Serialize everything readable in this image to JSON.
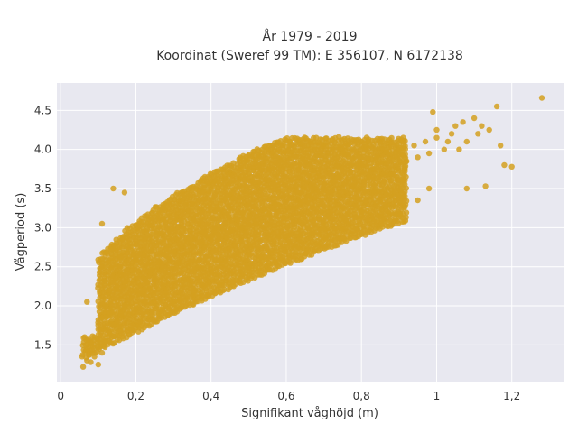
{
  "chart_data": {
    "type": "scatter",
    "title_line1": "År 1979 - 2019",
    "title_line2": "Koordinat (Sweref 99 TM): E 356107, N 6172138",
    "xlabel": "Signifikant våghöjd (m)",
    "ylabel": "Vågperiod (s)",
    "xlim": [
      -0.01,
      1.34
    ],
    "ylim": [
      1.02,
      4.85
    ],
    "x_ticks": [
      0,
      0.2,
      0.4,
      0.6,
      0.8,
      1,
      1.2
    ],
    "x_tick_labels": [
      "0",
      "0,2",
      "0,4",
      "0,6",
      "0,8",
      "1",
      "1,2"
    ],
    "y_ticks": [
      1.5,
      2.0,
      2.5,
      3.0,
      3.5,
      4.0,
      4.5
    ],
    "y_tick_labels": [
      "1.5",
      "2.0",
      "2.5",
      "3.0",
      "3.5",
      "4.0",
      "4.5"
    ],
    "grid": true,
    "marker_color": "#d4a020",
    "plot_background": "#e8e8f0",
    "points": [
      [
        0.06,
        1.22
      ],
      [
        0.07,
        1.3
      ],
      [
        0.07,
        1.45
      ],
      [
        0.08,
        1.28
      ],
      [
        0.08,
        1.52
      ],
      [
        0.09,
        1.35
      ],
      [
        0.09,
        1.6
      ],
      [
        0.1,
        1.25
      ],
      [
        0.1,
        1.48
      ],
      [
        0.1,
        1.7
      ],
      [
        0.11,
        1.4
      ],
      [
        0.11,
        1.85
      ],
      [
        0.12,
        1.55
      ],
      [
        0.12,
        2.0
      ],
      [
        0.13,
        1.65
      ],
      [
        0.13,
        1.9
      ],
      [
        0.14,
        1.75
      ],
      [
        0.14,
        2.1
      ],
      [
        0.15,
        1.8
      ],
      [
        0.15,
        2.25
      ],
      [
        0.16,
        1.9
      ],
      [
        0.16,
        2.4
      ],
      [
        0.17,
        2.0
      ],
      [
        0.17,
        2.3
      ],
      [
        0.18,
        2.05
      ],
      [
        0.18,
        2.5
      ],
      [
        0.19,
        2.1
      ],
      [
        0.19,
        2.45
      ],
      [
        0.2,
        2.2
      ],
      [
        0.2,
        2.6
      ],
      [
        0.21,
        2.25
      ],
      [
        0.22,
        2.35
      ],
      [
        0.22,
        2.65
      ],
      [
        0.23,
        2.3
      ],
      [
        0.24,
        2.45
      ],
      [
        0.24,
        2.75
      ],
      [
        0.25,
        2.4
      ],
      [
        0.26,
        2.55
      ],
      [
        0.27,
        2.5
      ],
      [
        0.28,
        2.65
      ],
      [
        0.29,
        2.6
      ],
      [
        0.3,
        2.7
      ],
      [
        0.31,
        2.55
      ],
      [
        0.32,
        2.75
      ],
      [
        0.33,
        2.7
      ],
      [
        0.34,
        2.85
      ],
      [
        0.35,
        2.75
      ],
      [
        0.36,
        2.9
      ],
      [
        0.37,
        2.8
      ],
      [
        0.38,
        2.95
      ],
      [
        0.4,
        2.85
      ],
      [
        0.41,
        3.0
      ],
      [
        0.42,
        2.9
      ],
      [
        0.44,
        3.05
      ],
      [
        0.45,
        2.95
      ],
      [
        0.47,
        3.1
      ],
      [
        0.48,
        3.0
      ],
      [
        0.5,
        3.15
      ],
      [
        0.52,
        3.05
      ],
      [
        0.54,
        3.25
      ],
      [
        0.55,
        3.15
      ],
      [
        0.57,
        3.3
      ],
      [
        0.58,
        3.2
      ],
      [
        0.6,
        3.35
      ],
      [
        0.62,
        3.25
      ],
      [
        0.64,
        3.45
      ],
      [
        0.65,
        3.35
      ],
      [
        0.67,
        3.5
      ],
      [
        0.68,
        3.4
      ],
      [
        0.7,
        3.55
      ],
      [
        0.72,
        3.45
      ],
      [
        0.74,
        3.65
      ],
      [
        0.75,
        3.5
      ],
      [
        0.77,
        3.7
      ],
      [
        0.78,
        3.55
      ],
      [
        0.8,
        3.8
      ],
      [
        0.82,
        3.65
      ],
      [
        0.84,
        3.9
      ],
      [
        0.85,
        3.75
      ],
      [
        0.87,
        3.95
      ],
      [
        0.88,
        3.8
      ],
      [
        0.9,
        4.0
      ],
      [
        0.92,
        3.85
      ],
      [
        0.94,
        4.05
      ],
      [
        0.95,
        3.9
      ],
      [
        0.97,
        4.1
      ],
      [
        0.98,
        3.95
      ],
      [
        1.0,
        4.15
      ],
      [
        1.02,
        4.0
      ],
      [
        1.04,
        4.2
      ],
      [
        1.05,
        4.3
      ],
      [
        1.07,
        4.35
      ],
      [
        1.08,
        4.1
      ],
      [
        1.1,
        4.4
      ],
      [
        1.12,
        4.3
      ],
      [
        1.14,
        4.25
      ],
      [
        1.16,
        4.55
      ],
      [
        1.18,
        3.8
      ],
      [
        1.2,
        3.78
      ],
      [
        1.28,
        4.66
      ],
      [
        0.14,
        3.5
      ],
      [
        0.17,
        3.45
      ],
      [
        0.11,
        3.05
      ],
      [
        0.07,
        2.05
      ],
      [
        0.99,
        4.48
      ],
      [
        1.0,
        4.25
      ],
      [
        1.03,
        4.1
      ],
      [
        1.06,
        4.0
      ],
      [
        1.08,
        3.5
      ],
      [
        1.11,
        4.2
      ],
      [
        1.13,
        3.53
      ],
      [
        1.17,
        4.05
      ],
      [
        0.35,
        3.3
      ],
      [
        0.5,
        3.3
      ],
      [
        0.6,
        3.65
      ],
      [
        0.66,
        3.4
      ],
      [
        0.72,
        3.2
      ],
      [
        0.8,
        3.2
      ],
      [
        0.85,
        3.35
      ],
      [
        0.9,
        3.4
      ],
      [
        0.95,
        3.35
      ],
      [
        0.98,
        3.5
      ]
    ]
  }
}
